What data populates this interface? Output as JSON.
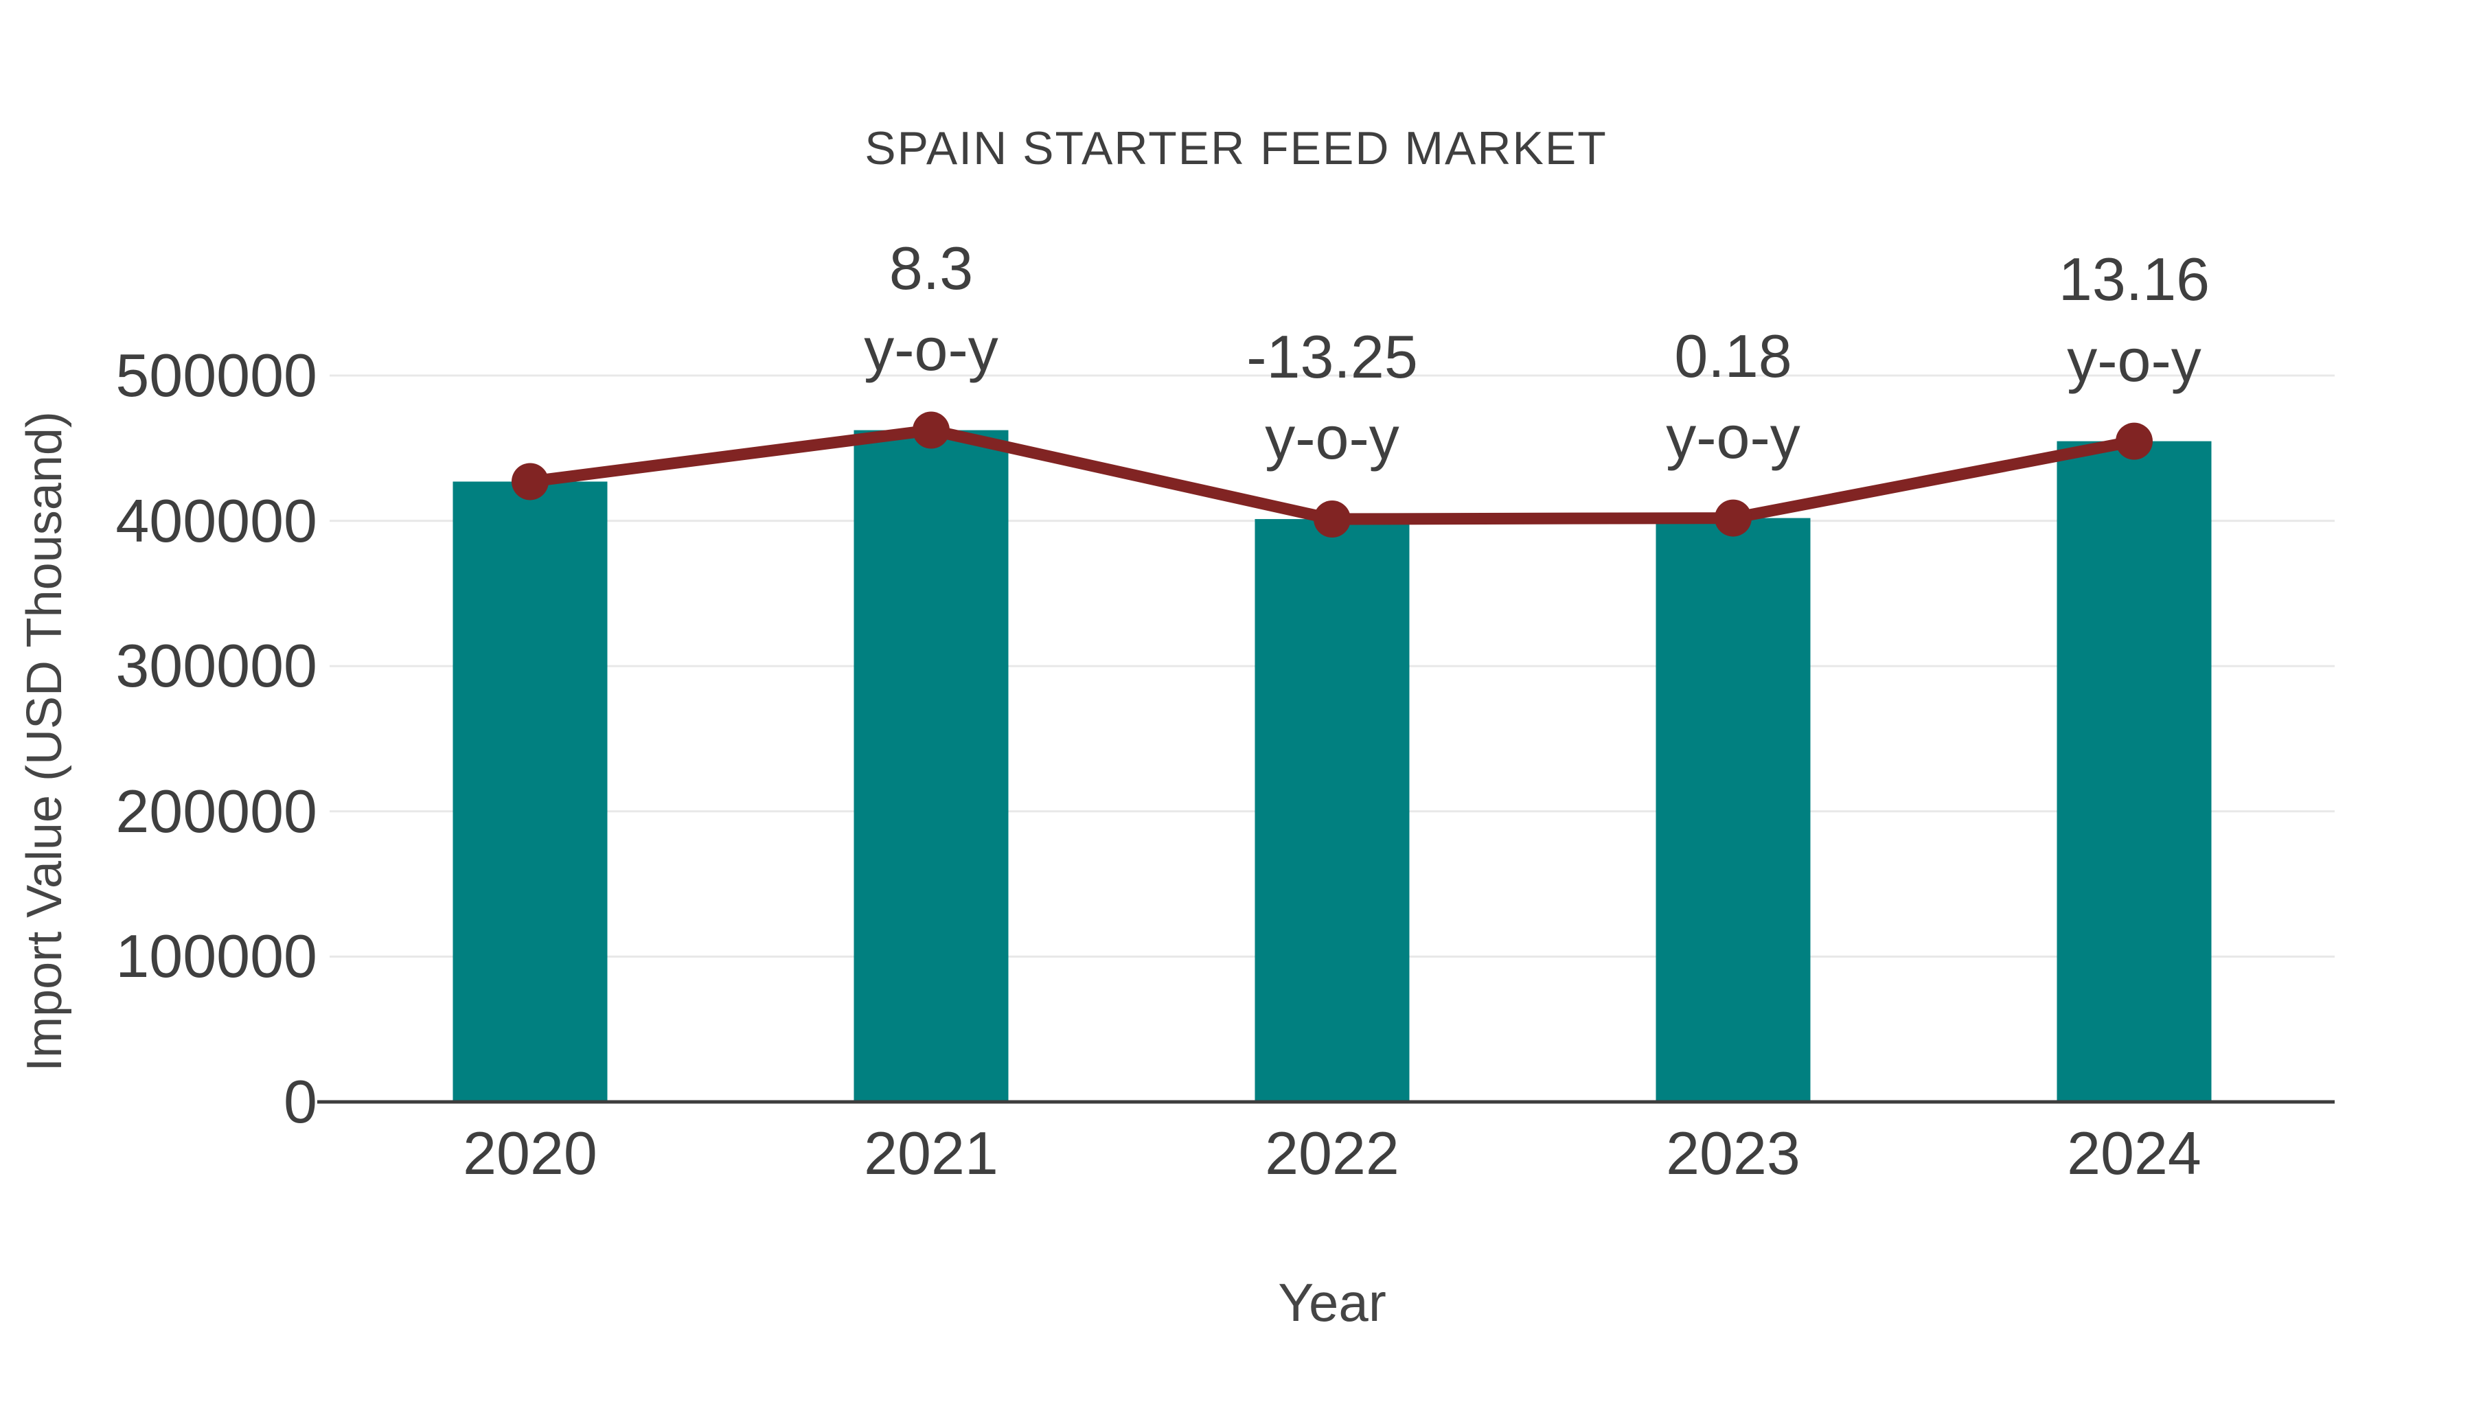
{
  "title": "SPAIN STARTER FEED MARKET",
  "x_axis_title": "Year",
  "y_axis_title": "Import Value (USD Thousand)",
  "colors": {
    "bar": "#018080",
    "line": "#812423",
    "marker": "#812423",
    "gridline": "#e8e8e8",
    "axis_line": "#3d3d3d",
    "text": "#3f3f3f"
  },
  "chart_data": {
    "type": "bar",
    "subtype": "bar-with-line-overlay",
    "title": "SPAIN STARTER FEED MARKET",
    "xlabel": "Year",
    "ylabel": "Import Value (USD Thousand)",
    "categories": [
      "2020",
      "2021",
      "2022",
      "2023",
      "2024"
    ],
    "series": [
      {
        "name": "Import Value bars (USD Thousand)",
        "type": "bar",
        "color": "#018080",
        "values": [
          427000,
          462400,
          401200,
          401900,
          454800
        ]
      },
      {
        "name": "Import Value trend line with markers",
        "type": "line",
        "color": "#812423",
        "values": [
          427000,
          462400,
          401200,
          401900,
          454800
        ]
      }
    ],
    "annotations": [
      {
        "category": "2021",
        "value_label": "8.3",
        "sub_label": "y-o-y"
      },
      {
        "category": "2022",
        "value_label": "-13.25",
        "sub_label": "y-o-y"
      },
      {
        "category": "2023",
        "value_label": "0.18",
        "sub_label": "y-o-y"
      },
      {
        "category": "2024",
        "value_label": "13.16",
        "sub_label": "y-o-y"
      }
    ],
    "y_ticks": [
      "0",
      "100000",
      "200000",
      "300000",
      "400000",
      "500000"
    ],
    "y_tick_values": [
      0,
      100000,
      200000,
      300000,
      400000,
      500000
    ],
    "ylim": [
      0,
      500000
    ],
    "grid": true,
    "legend": false
  }
}
